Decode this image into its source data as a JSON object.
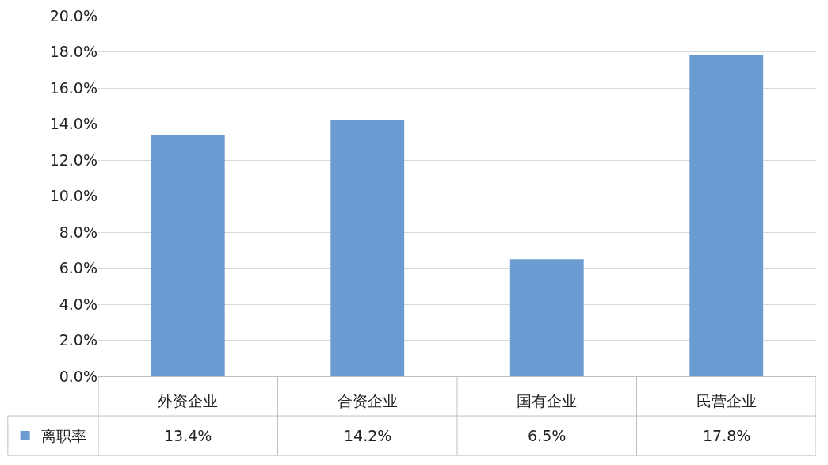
{
  "chart_data": {
    "type": "bar",
    "categories": [
      "外资企业",
      "合资企业",
      "国有企业",
      "民营企业"
    ],
    "series": [
      {
        "name": "离职率",
        "color": "#6a9bd1",
        "values": [
          13.4,
          14.2,
          6.5,
          17.8
        ],
        "value_labels": [
          "13.4%",
          "14.2%",
          "6.5%",
          "17.8%"
        ]
      }
    ],
    "ylim": [
      0,
      20
    ],
    "yticks": [
      {
        "value": 0,
        "label": "0.0%"
      },
      {
        "value": 2,
        "label": "2.0%"
      },
      {
        "value": 4,
        "label": "4.0%"
      },
      {
        "value": 6,
        "label": "6.0%"
      },
      {
        "value": 8,
        "label": "8.0%"
      },
      {
        "value": 10,
        "label": "10.0%"
      },
      {
        "value": 12,
        "label": "12.0%"
      },
      {
        "value": 14,
        "label": "14.0%"
      },
      {
        "value": 16,
        "label": "16.0%"
      },
      {
        "value": 18,
        "label": "18.0%"
      },
      {
        "value": 20,
        "label": "20.0%"
      }
    ],
    "grid": "y",
    "legend": "bottom left"
  }
}
